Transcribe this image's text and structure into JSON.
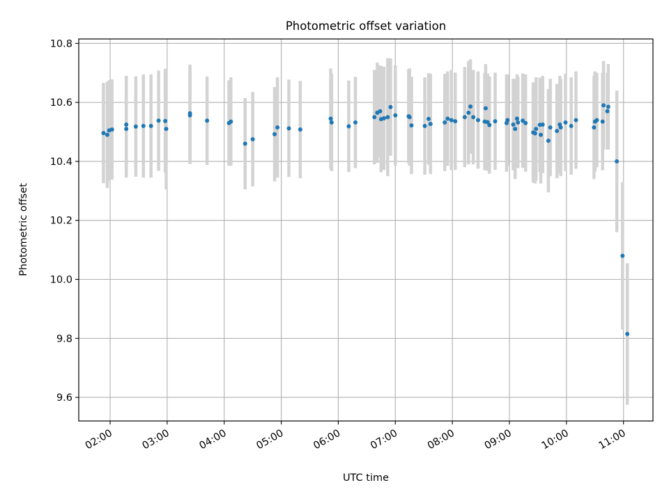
{
  "chart_data": {
    "type": "scatter",
    "title": "Photometric offset variation",
    "xlabel": "UTC time",
    "ylabel": "Photometric offset",
    "xlim": [
      "01:27",
      "11:31"
    ],
    "ylim": [
      9.52,
      10.815
    ],
    "x_ticks": [
      "02:00",
      "03:00",
      "04:00",
      "05:00",
      "06:00",
      "07:00",
      "08:00",
      "09:00",
      "10:00",
      "11:00"
    ],
    "y_ticks": [
      "9.6",
      "9.8",
      "10.0",
      "10.2",
      "10.4",
      "10.6",
      "10.8"
    ],
    "grid": true,
    "colors": {
      "points": "#1f77b4",
      "error_bars": "#d3d3d3",
      "grid": "#b0b0b0"
    },
    "series": [
      {
        "x": [
          "01:53",
          "01:57",
          "01:59",
          "02:02",
          "02:17",
          "02:17",
          "02:27",
          "02:35",
          "02:43",
          "02:51",
          "02:58",
          "02:59",
          "03:24",
          "03:24",
          "03:42",
          "04:05",
          "04:07",
          "04:22",
          "04:30",
          "04:53",
          "04:56",
          "05:08",
          "05:20",
          "05:52",
          "05:53",
          "06:11",
          "06:18",
          "06:38",
          "06:41",
          "06:44",
          "06:45",
          "06:48",
          "06:52",
          "06:55",
          "07:00",
          "07:14",
          "07:15",
          "07:17",
          "07:31",
          "07:35",
          "07:37",
          "07:52",
          "07:55",
          "07:59",
          "08:03",
          "08:13",
          "08:17",
          "08:19",
          "08:22",
          "08:27",
          "08:34",
          "08:35",
          "08:37",
          "08:39",
          "08:45",
          "08:57",
          "08:58",
          "09:04",
          "09:06",
          "09:08",
          "09:09",
          "09:14",
          "09:17",
          "09:25",
          "09:27",
          "09:28",
          "09:32",
          "09:33",
          "09:35",
          "09:41",
          "09:43",
          "09:50",
          "09:53",
          "09:54",
          "09:59",
          "10:05",
          "10:10",
          "10:29",
          "10:30",
          "10:32",
          "10:38",
          "10:39",
          "10:43",
          "10:44",
          "10:53",
          "10:59",
          "11:04"
        ],
        "y": [
          10.496,
          10.49,
          10.505,
          10.508,
          10.51,
          10.525,
          10.518,
          10.52,
          10.52,
          10.538,
          10.537,
          10.51,
          10.556,
          10.563,
          10.538,
          10.53,
          10.535,
          10.46,
          10.475,
          10.492,
          10.515,
          10.512,
          10.508,
          10.545,
          10.532,
          10.519,
          10.532,
          10.55,
          10.565,
          10.57,
          10.543,
          10.546,
          10.55,
          10.584,
          10.556,
          10.553,
          10.55,
          10.522,
          10.52,
          10.544,
          10.527,
          10.532,
          10.545,
          10.54,
          10.536,
          10.55,
          10.565,
          10.586,
          10.55,
          10.54,
          10.535,
          10.58,
          10.533,
          10.523,
          10.536,
          10.53,
          10.54,
          10.525,
          10.51,
          10.545,
          10.532,
          10.538,
          10.53,
          10.498,
          10.495,
          10.51,
          10.524,
          10.49,
          10.525,
          10.47,
          10.515,
          10.503,
          10.525,
          10.515,
          10.532,
          10.52,
          10.54,
          10.515,
          10.535,
          10.54,
          10.535,
          10.59,
          10.57,
          10.585,
          10.4,
          10.08,
          9.815
        ],
        "err": [
          0.17,
          0.18,
          0.17,
          0.17,
          0.165,
          0.165,
          0.17,
          0.175,
          0.175,
          0.17,
          0.175,
          0.205,
          0.165,
          0.165,
          0.15,
          0.145,
          0.15,
          0.155,
          0.16,
          0.16,
          0.17,
          0.165,
          0.165,
          0.17,
          0.165,
          0.155,
          0.155,
          0.16,
          0.17,
          0.155,
          0.18,
          0.175,
          0.2,
          0.165,
          0.17,
          0.16,
          0.165,
          0.165,
          0.165,
          0.155,
          0.17,
          0.165,
          0.16,
          0.17,
          0.165,
          0.17,
          0.175,
          0.16,
          0.16,
          0.165,
          0.165,
          0.15,
          0.165,
          0.165,
          0.165,
          0.165,
          0.155,
          0.155,
          0.17,
          0.15,
          0.155,
          0.16,
          0.165,
          0.17,
          0.17,
          0.175,
          0.16,
          0.165,
          0.165,
          0.175,
          0.165,
          0.16,
          0.165,
          0.165,
          0.165,
          0.165,
          0.165,
          0.175,
          0.17,
          0.16,
          0.165,
          0.15,
          0.13,
          0.145,
          0.24,
          0.25,
          0.24
        ]
      }
    ]
  }
}
